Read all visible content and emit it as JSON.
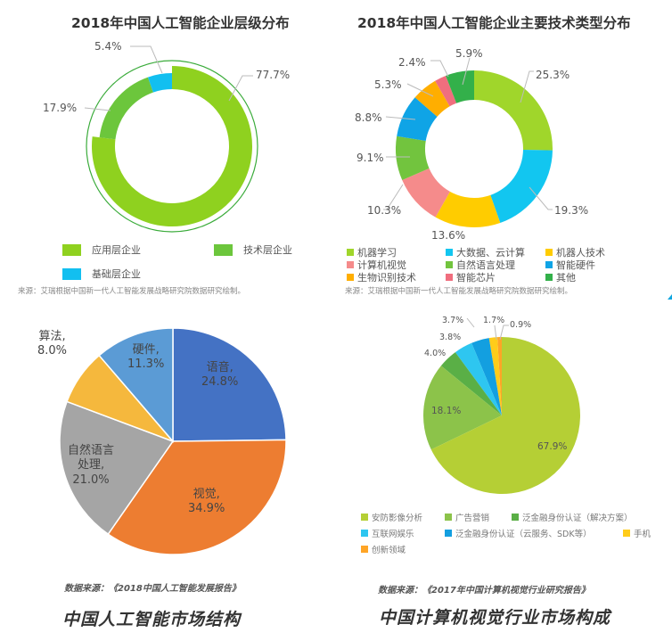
{
  "chart_data": [
    {
      "id": "layer",
      "type": "pie",
      "subtype": "donut",
      "title": "2018年中国人工智能企业层级分布",
      "categories": [
        "应用层企业",
        "技术层企业",
        "基础层企业"
      ],
      "values": [
        77.7,
        17.9,
        5.4
      ],
      "labels": [
        "77.7%",
        "17.9%",
        "5.4%"
      ],
      "colors": [
        "#8fd11f",
        "#6cc63c",
        "#12bff0"
      ],
      "legend_position": "bottom",
      "source": "来源：艾瑞根据中国新一代人工智能发展战略研究院数据研究绘制。"
    },
    {
      "id": "tech",
      "type": "pie",
      "subtype": "donut",
      "title": "2018年中国人工智能企业主要技术类型分布",
      "categories": [
        "机器学习",
        "大数据、云计算",
        "机器人技术",
        "计算机视觉",
        "自然语言处理",
        "智能硬件",
        "生物识别技术",
        "智能芯片",
        "其他"
      ],
      "values": [
        25.3,
        19.3,
        13.6,
        10.3,
        9.1,
        8.8,
        5.3,
        2.4,
        5.9
      ],
      "labels": [
        "25.3%",
        "19.3%",
        "13.6%",
        "10.3%",
        "9.1%",
        "8.8%",
        "5.3%",
        "2.4%",
        "5.9%"
      ],
      "colors": [
        "#a0d62b",
        "#12c6f0",
        "#ffcc00",
        "#f58b8b",
        "#72c43e",
        "#0fa4e6",
        "#ffae00",
        "#f06e7e",
        "#33b04a"
      ],
      "legend_position": "bottom",
      "source": "来源：艾瑞根据中国新一代人工智能发展战略研究院数据研究绘制。"
    },
    {
      "id": "market",
      "type": "pie",
      "title": "中国人工智能市场结构",
      "categories": [
        "语音",
        "视觉",
        "自然语言处理",
        "算法",
        "硬件"
      ],
      "values": [
        24.8,
        34.9,
        21.0,
        8.0,
        11.3
      ],
      "labels": [
        "语音，24.8%",
        "视觉，34.9%",
        "自然语言处理，21.0%",
        "算法，8.0%",
        "硬件，11.3%"
      ],
      "colors": [
        "#4472c4",
        "#ed7d31",
        "#a5a5a5",
        "#f5b83d",
        "#5b9bd5"
      ],
      "source": "数据来源：《2018中国人工智能发展报告》"
    },
    {
      "id": "cv",
      "type": "pie",
      "title": "中国计算机视觉行业市场构成",
      "categories": [
        "安防影像分析",
        "广告营销",
        "泛金融身份认证（解决方案）",
        "互联网娱乐",
        "泛金融身份认证（云服务、SDK等）",
        "手机",
        "创新领域"
      ],
      "values": [
        67.9,
        18.1,
        4.0,
        3.8,
        3.7,
        1.7,
        0.9
      ],
      "labels": [
        "67.9%",
        "18.1%",
        "4.0%",
        "3.8%",
        "3.7%",
        "1.7%",
        "0.9%"
      ],
      "colors": [
        "#b5cf35",
        "#8cc34a",
        "#5aaf46",
        "#2ec6f0",
        "#139fe0",
        "#ffcc1a",
        "#ffa526"
      ],
      "legend_position": "bottom",
      "source": "数据来源：《2017年中国计算机视觉行业研究报告》"
    }
  ],
  "panels": {
    "layer": {
      "title": "2018年中国人工智能企业层级分布",
      "labels": [
        "77.7%",
        "17.9%",
        "5.4%"
      ],
      "legend": [
        "应用层企业",
        "技术层企业",
        "基础层企业"
      ],
      "source": "来源：艾瑞根据中国新一代人工智能发展战略研究院数据研究绘制。"
    },
    "tech": {
      "title": "2018年中国人工智能企业主要技术类型分布",
      "labels": [
        "25.3%",
        "19.3%",
        "13.6%",
        "10.3%",
        "9.1%",
        "8.8%",
        "5.3%",
        "2.4%",
        "5.9%"
      ],
      "legend": [
        "机器学习",
        "大数据、云计算",
        "机器人技术",
        "计算机视觉",
        "自然语言处理",
        "智能硬件",
        "生物识别技术",
        "智能芯片",
        "其他"
      ],
      "source": "来源：艾瑞根据中国新一代人工智能发展战略研究院数据研究绘制。"
    },
    "market": {
      "slice_labels": [
        {
          "name": "语音,",
          "value": "24.8%"
        },
        {
          "name": "视觉,",
          "value": "34.9%"
        },
        {
          "name": "自然语言",
          "name2": "处理,",
          "value": "21.0%"
        },
        {
          "name": "算法,",
          "value": "8.0%"
        },
        {
          "name": "硬件,",
          "value": "11.3%"
        }
      ],
      "cite": "数据来源：《2018中国人工智能发展报告》",
      "title": "中国人工智能市场结构"
    },
    "cv": {
      "labels": [
        "67.9%",
        "18.1%",
        "4.0%",
        "3.8%",
        "3.7%",
        "1.7%",
        "0.9%"
      ],
      "legend": [
        "安防影像分析",
        "广告营销",
        "泛金融身份认证（解决方案）",
        "互联网娱乐",
        "泛金融身份认证（云服务、SDK等）",
        "手机",
        "创新领域"
      ],
      "cite": "数据来源：《2017年中国计算机视觉行业研究报告》",
      "title": "中国计算机视觉行业市场构成"
    }
  }
}
